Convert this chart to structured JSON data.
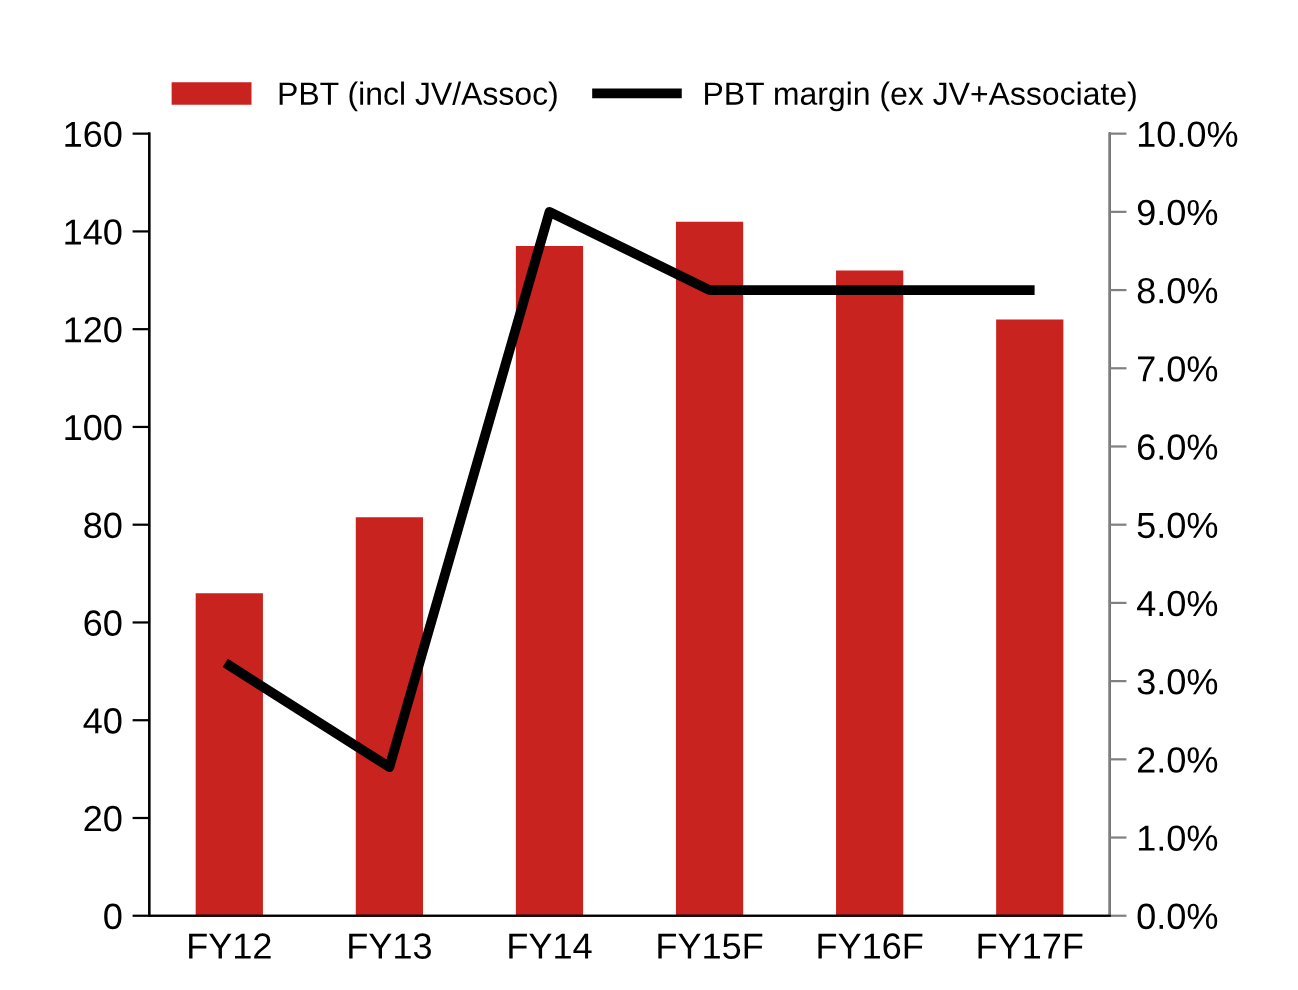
{
  "chart_data": {
    "type": "bar",
    "categories": [
      "FY12",
      "FY13",
      "FY14",
      "FY15F",
      "FY16F",
      "FY17F"
    ],
    "series": [
      {
        "name": "PBT (incl JV/Assoc)",
        "color": "#c8231f",
        "values": [
          66,
          81.5,
          137,
          142,
          132,
          122
        ]
      },
      {
        "name": "PBT margin (ex JV+Associate)",
        "type": "line",
        "axis": "y2",
        "color": "#000000",
        "values": [
          3.2,
          1.9,
          9.0,
          8.0,
          8.0,
          8.0
        ]
      }
    ],
    "ylim": [
      0,
      160
    ],
    "yticks": [
      0,
      20,
      40,
      60,
      80,
      100,
      120,
      140,
      160
    ],
    "y2lim": [
      0,
      10
    ],
    "y2ticks": [
      {
        "value": 0,
        "label": "0.0%"
      },
      {
        "value": 1,
        "label": "1.0%"
      },
      {
        "value": 2,
        "label": "2.0%"
      },
      {
        "value": 3,
        "label": "3.0%"
      },
      {
        "value": 4,
        "label": "4.0%"
      },
      {
        "value": 5,
        "label": "5.0%"
      },
      {
        "value": 6,
        "label": "6.0%"
      },
      {
        "value": 7,
        "label": "7.0%"
      },
      {
        "value": 8,
        "label": "8.0%"
      },
      {
        "value": 9,
        "label": "9.0%"
      },
      {
        "value": 10,
        "label": "10.0%"
      }
    ],
    "legend": "top left",
    "grid": false,
    "marker": "none",
    "line_style": "solid"
  }
}
